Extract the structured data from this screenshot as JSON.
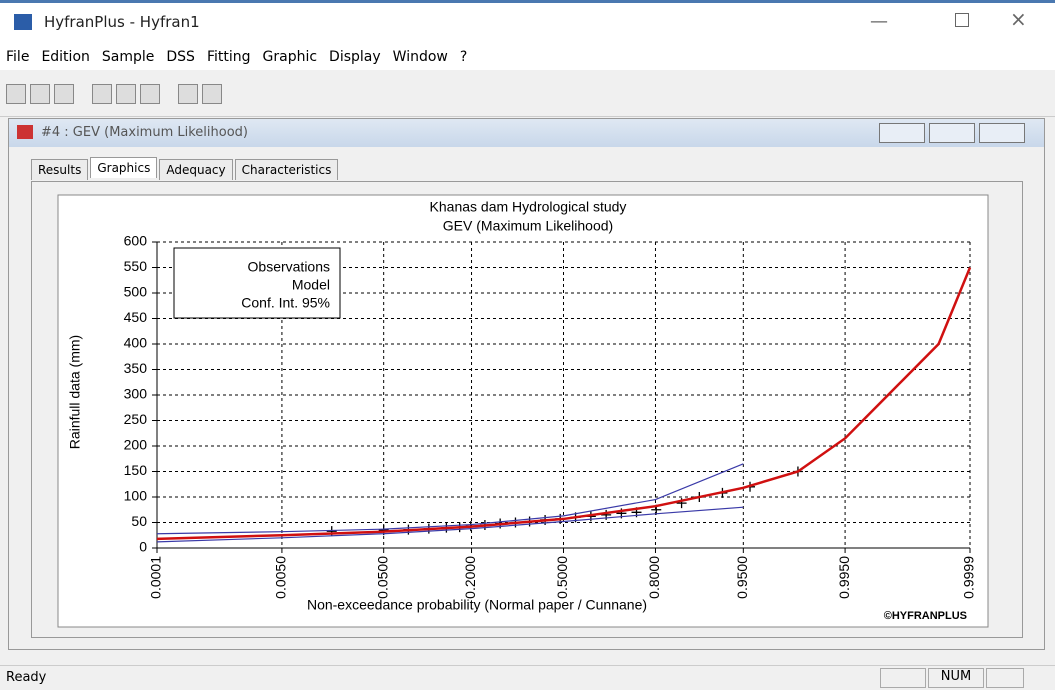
{
  "window": {
    "title": "HyfranPlus - Hyfran1",
    "menu": [
      "File",
      "Edition",
      "Sample",
      "DSS",
      "Fitting",
      "Graphic",
      "Display",
      "Window",
      "?"
    ]
  },
  "child_window": {
    "title": "#4 : GEV (Maximum Likelihood)",
    "tabs": [
      "Results",
      "Graphics",
      "Adequacy",
      "Characteristics"
    ],
    "active_tab": 1
  },
  "status_bar": {
    "text": "Ready",
    "indicators": [
      "NUM"
    ]
  },
  "chart_data": {
    "type": "line",
    "title": "Khanas dam Hydrological study",
    "subtitle": "GEV (Maximum Likelihood)",
    "x_label": "Non-exceedance probability (Normal paper / Cunnane)",
    "y_label": "Rainfull data (mm)",
    "watermark": "©HYFRANPLUS",
    "xscale": "normal_probability",
    "xlim": [
      0.0001,
      0.9999
    ],
    "xticks": [
      0.0001,
      {
        "value": 0.005,
        "label": "0.0050"
      },
      {
        "value": 0.05,
        "label": "0.0500"
      },
      {
        "value": 0.2,
        "label": "0.2000"
      },
      {
        "value": 0.5,
        "label": "0.5000"
      },
      {
        "value": 0.8,
        "label": "0.8000"
      },
      {
        "value": 0.95,
        "label": "0.9500"
      },
      {
        "value": 0.995,
        "label": "0.9950"
      },
      0.9999
    ],
    "ylim": [
      0,
      600
    ],
    "yticks": [
      0,
      50,
      100,
      150,
      200,
      250,
      300,
      350,
      400,
      450,
      500,
      550,
      600
    ],
    "grid": true,
    "legend": "top-left",
    "series": [
      {
        "name": "Observations",
        "color": "#000000",
        "marker": "cross",
        "x": [
          0.017,
          0.05,
          0.078,
          0.109,
          0.142,
          0.171,
          0.198,
          0.236,
          0.281,
          0.33,
          0.378,
          0.433,
          0.488,
          0.544,
          0.599,
          0.652,
          0.702,
          0.748,
          0.802,
          0.86,
          0.893,
          0.927,
          0.956,
          0.984
        ],
        "values": [
          33,
          35,
          36,
          38,
          40,
          41,
          43,
          45,
          48,
          50,
          52,
          55,
          57,
          60,
          62,
          65,
          68,
          70,
          75,
          88,
          100,
          108,
          120,
          150
        ]
      },
      {
        "name": "Model",
        "color": "#d01010",
        "x": [
          0.0001,
          0.005,
          0.05,
          0.2,
          0.5,
          0.8,
          0.95,
          0.984,
          0.995,
          0.9989,
          0.9997,
          0.9999
        ],
        "values": [
          18,
          25,
          32,
          42,
          57,
          82,
          118,
          150,
          215,
          320,
          400,
          550
        ]
      },
      {
        "name": "Conf. Int. 95%",
        "color": "#3a3aa8",
        "x": [
          0.0001,
          0.005,
          0.05,
          0.2,
          0.5,
          0.8,
          0.95
        ],
        "lower": [
          12,
          20,
          28,
          38,
          52,
          67,
          80
        ],
        "upper": [
          28,
          32,
          37,
          46,
          63,
          95,
          165
        ]
      }
    ]
  }
}
